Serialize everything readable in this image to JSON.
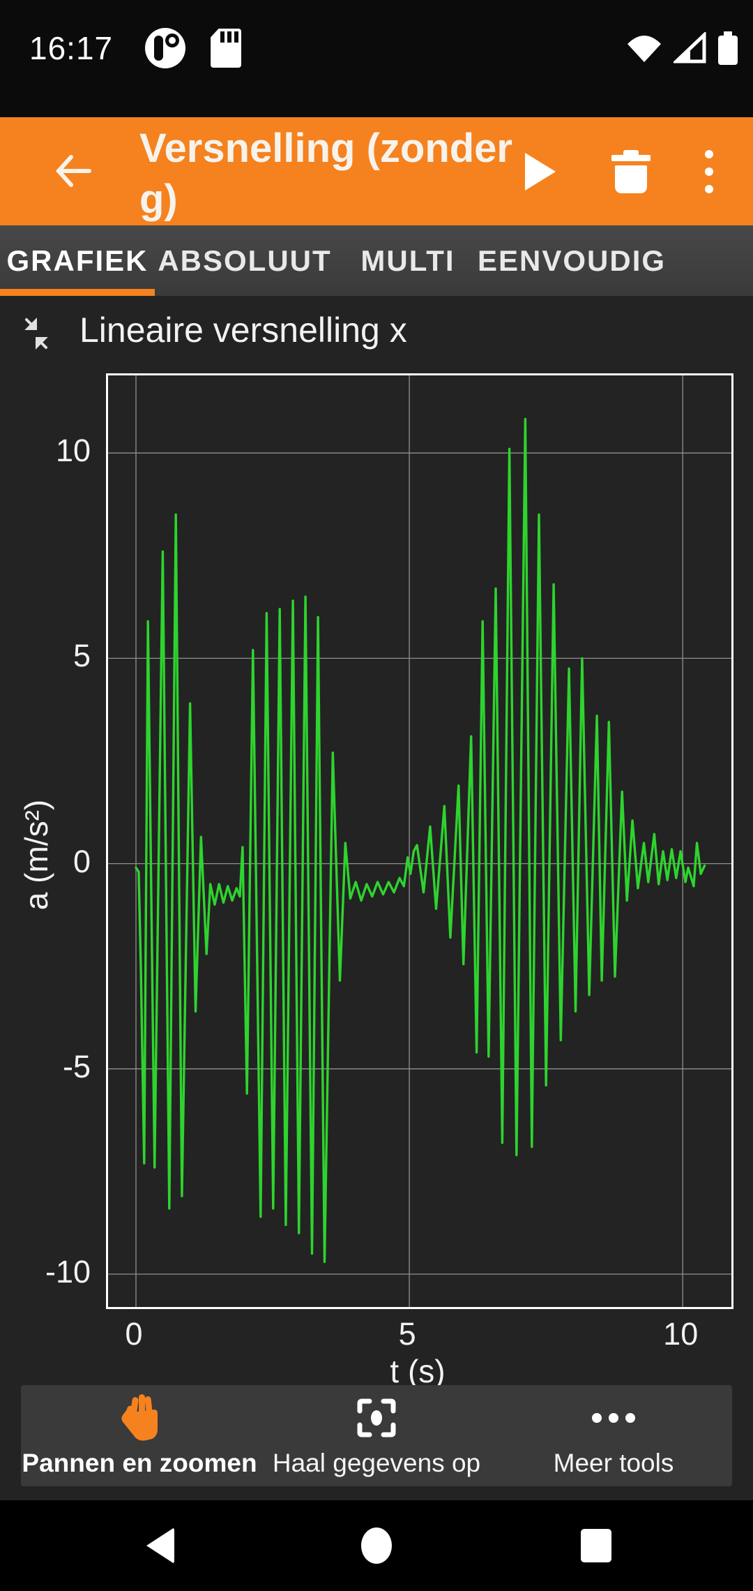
{
  "status_bar": {
    "time": "16:17"
  },
  "app_bar": {
    "title": "Versnelling (zonder g)"
  },
  "tabs": [
    {
      "label": "GRAFIEK",
      "active": true
    },
    {
      "label": "ABSOLUUT",
      "active": false
    },
    {
      "label": "MULTI",
      "active": false
    },
    {
      "label": "EENVOUDIG",
      "active": false
    }
  ],
  "chart_data": {
    "type": "line",
    "title": "Lineaire versnelling x",
    "xlabel": "t (s)",
    "ylabel": "a (m/s²)",
    "x_ticks": [
      0,
      5,
      10
    ],
    "y_ticks": [
      10,
      5,
      0,
      -5,
      -10
    ],
    "xlim": [
      -0.51,
      10.89
    ],
    "ylim": [
      -10.8,
      11.89
    ],
    "grid": true,
    "line_color": "#2ed42e",
    "grid_color": "#909090",
    "points": [
      [
        0.0,
        -0.1
      ],
      [
        0.05,
        -0.2
      ],
      [
        0.09,
        -2.6
      ],
      [
        0.15,
        -7.3
      ],
      [
        0.22,
        5.9
      ],
      [
        0.34,
        -7.4
      ],
      [
        0.49,
        7.6
      ],
      [
        0.61,
        -8.4
      ],
      [
        0.73,
        8.5
      ],
      [
        0.84,
        -8.1
      ],
      [
        0.99,
        3.9
      ],
      [
        1.09,
        -3.6
      ],
      [
        1.19,
        0.65
      ],
      [
        1.29,
        -2.2
      ],
      [
        1.36,
        -0.5
      ],
      [
        1.44,
        -1.0
      ],
      [
        1.52,
        -0.5
      ],
      [
        1.6,
        -0.95
      ],
      [
        1.68,
        -0.55
      ],
      [
        1.76,
        -0.9
      ],
      [
        1.84,
        -0.6
      ],
      [
        1.9,
        -0.8
      ],
      [
        1.95,
        0.4
      ],
      [
        2.03,
        -5.6
      ],
      [
        2.14,
        5.2
      ],
      [
        2.28,
        -8.6
      ],
      [
        2.39,
        6.1
      ],
      [
        2.51,
        -8.4
      ],
      [
        2.63,
        6.2
      ],
      [
        2.74,
        -8.8
      ],
      [
        2.87,
        6.4
      ],
      [
        2.98,
        -9.0
      ],
      [
        3.1,
        6.5
      ],
      [
        3.22,
        -9.5
      ],
      [
        3.33,
        6.0
      ],
      [
        3.45,
        -9.7
      ],
      [
        3.6,
        2.7
      ],
      [
        3.73,
        -2.85
      ],
      [
        3.83,
        0.5
      ],
      [
        3.92,
        -0.85
      ],
      [
        4.02,
        -0.45
      ],
      [
        4.12,
        -0.9
      ],
      [
        4.22,
        -0.5
      ],
      [
        4.32,
        -0.8
      ],
      [
        4.42,
        -0.45
      ],
      [
        4.52,
        -0.75
      ],
      [
        4.62,
        -0.45
      ],
      [
        4.72,
        -0.7
      ],
      [
        4.82,
        -0.35
      ],
      [
        4.9,
        -0.55
      ],
      [
        4.97,
        0.15
      ],
      [
        5.02,
        -0.25
      ],
      [
        5.08,
        0.3
      ],
      [
        5.14,
        0.45
      ],
      [
        5.26,
        -0.7
      ],
      [
        5.38,
        0.9
      ],
      [
        5.49,
        -1.1
      ],
      [
        5.64,
        1.4
      ],
      [
        5.75,
        -1.8
      ],
      [
        5.9,
        1.9
      ],
      [
        5.99,
        -2.45
      ],
      [
        6.13,
        3.1
      ],
      [
        6.23,
        -4.6
      ],
      [
        6.34,
        5.9
      ],
      [
        6.45,
        -4.7
      ],
      [
        6.58,
        6.7
      ],
      [
        6.7,
        -6.8
      ],
      [
        6.83,
        10.1
      ],
      [
        6.96,
        -7.1
      ],
      [
        7.12,
        10.83
      ],
      [
        7.24,
        -6.9
      ],
      [
        7.37,
        8.5
      ],
      [
        7.5,
        -5.4
      ],
      [
        7.64,
        6.8
      ],
      [
        7.77,
        -4.3
      ],
      [
        7.92,
        4.75
      ],
      [
        8.04,
        -3.6
      ],
      [
        8.16,
        5.0
      ],
      [
        8.29,
        -3.2
      ],
      [
        8.43,
        3.6
      ],
      [
        8.52,
        -2.85
      ],
      [
        8.65,
        3.45
      ],
      [
        8.76,
        -2.75
      ],
      [
        8.89,
        1.75
      ],
      [
        8.98,
        -0.9
      ],
      [
        9.08,
        1.05
      ],
      [
        9.18,
        -0.6
      ],
      [
        9.29,
        0.5
      ],
      [
        9.37,
        -0.45
      ],
      [
        9.48,
        0.72
      ],
      [
        9.56,
        -0.5
      ],
      [
        9.64,
        0.3
      ],
      [
        9.72,
        -0.4
      ],
      [
        9.8,
        0.35
      ],
      [
        9.88,
        -0.35
      ],
      [
        9.96,
        0.3
      ],
      [
        10.05,
        -0.45
      ],
      [
        10.1,
        -0.1
      ],
      [
        10.2,
        -0.55
      ],
      [
        10.26,
        0.5
      ],
      [
        10.33,
        -0.25
      ],
      [
        10.4,
        -0.05
      ]
    ]
  },
  "toolbar": {
    "items": [
      {
        "label": "Pannen en zoomen",
        "icon": "hand-icon",
        "active": true
      },
      {
        "label": "Haal gegevens op",
        "icon": "pick-data-icon",
        "active": false
      },
      {
        "label": "Meer tools",
        "icon": "more-dots-icon",
        "active": false
      }
    ]
  },
  "colors": {
    "accent_orange": "#f5821f",
    "line_green": "#2ed42e"
  }
}
